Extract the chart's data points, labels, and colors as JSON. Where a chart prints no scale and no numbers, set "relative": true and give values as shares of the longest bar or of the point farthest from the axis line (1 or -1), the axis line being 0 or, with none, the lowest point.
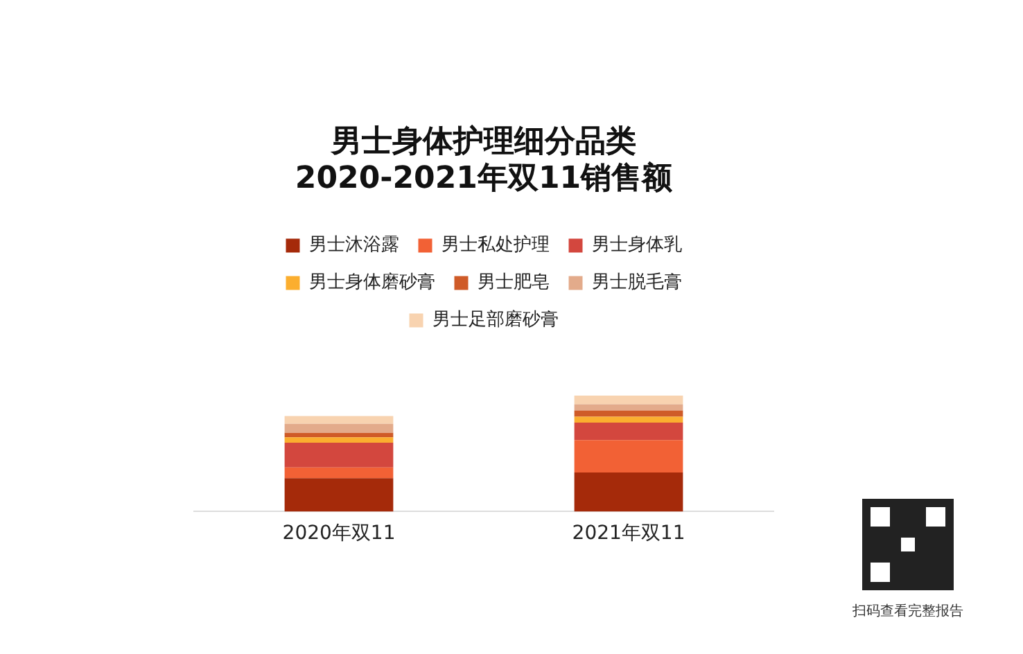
{
  "chart_data": {
    "type": "bar",
    "title": "男士身体护理细分品类\n2020-2021年双11销售额",
    "categories": [
      "2020年双11",
      "2021年双11"
    ],
    "stacked": true,
    "relative": true,
    "grid": false,
    "legend": "top",
    "annotations": [
      "扫码查看完整报告"
    ],
    "series": [
      {
        "name": "男士沐浴露",
        "color": "#a52a0a",
        "values": [
          0.287,
          0.337
        ]
      },
      {
        "name": "男士私处护理",
        "color": "#f26135",
        "values": [
          0.093,
          0.279
        ]
      },
      {
        "name": "男士身体乳",
        "color": "#d3473e",
        "values": [
          0.213,
          0.151
        ]
      },
      {
        "name": "男士身体磨砂膏",
        "color": "#fbae2f",
        "values": [
          0.047,
          0.05
        ]
      },
      {
        "name": "男士肥皂",
        "color": "#cf5b28",
        "values": [
          0.039,
          0.054
        ]
      },
      {
        "name": "男士脱毛膏",
        "color": "#e3ab8b",
        "values": [
          0.078,
          0.054
        ]
      },
      {
        "name": "男士足部磨砂膏",
        "color": "#f8d3b0",
        "values": [
          0.066,
          0.075
        ]
      }
    ]
  }
}
